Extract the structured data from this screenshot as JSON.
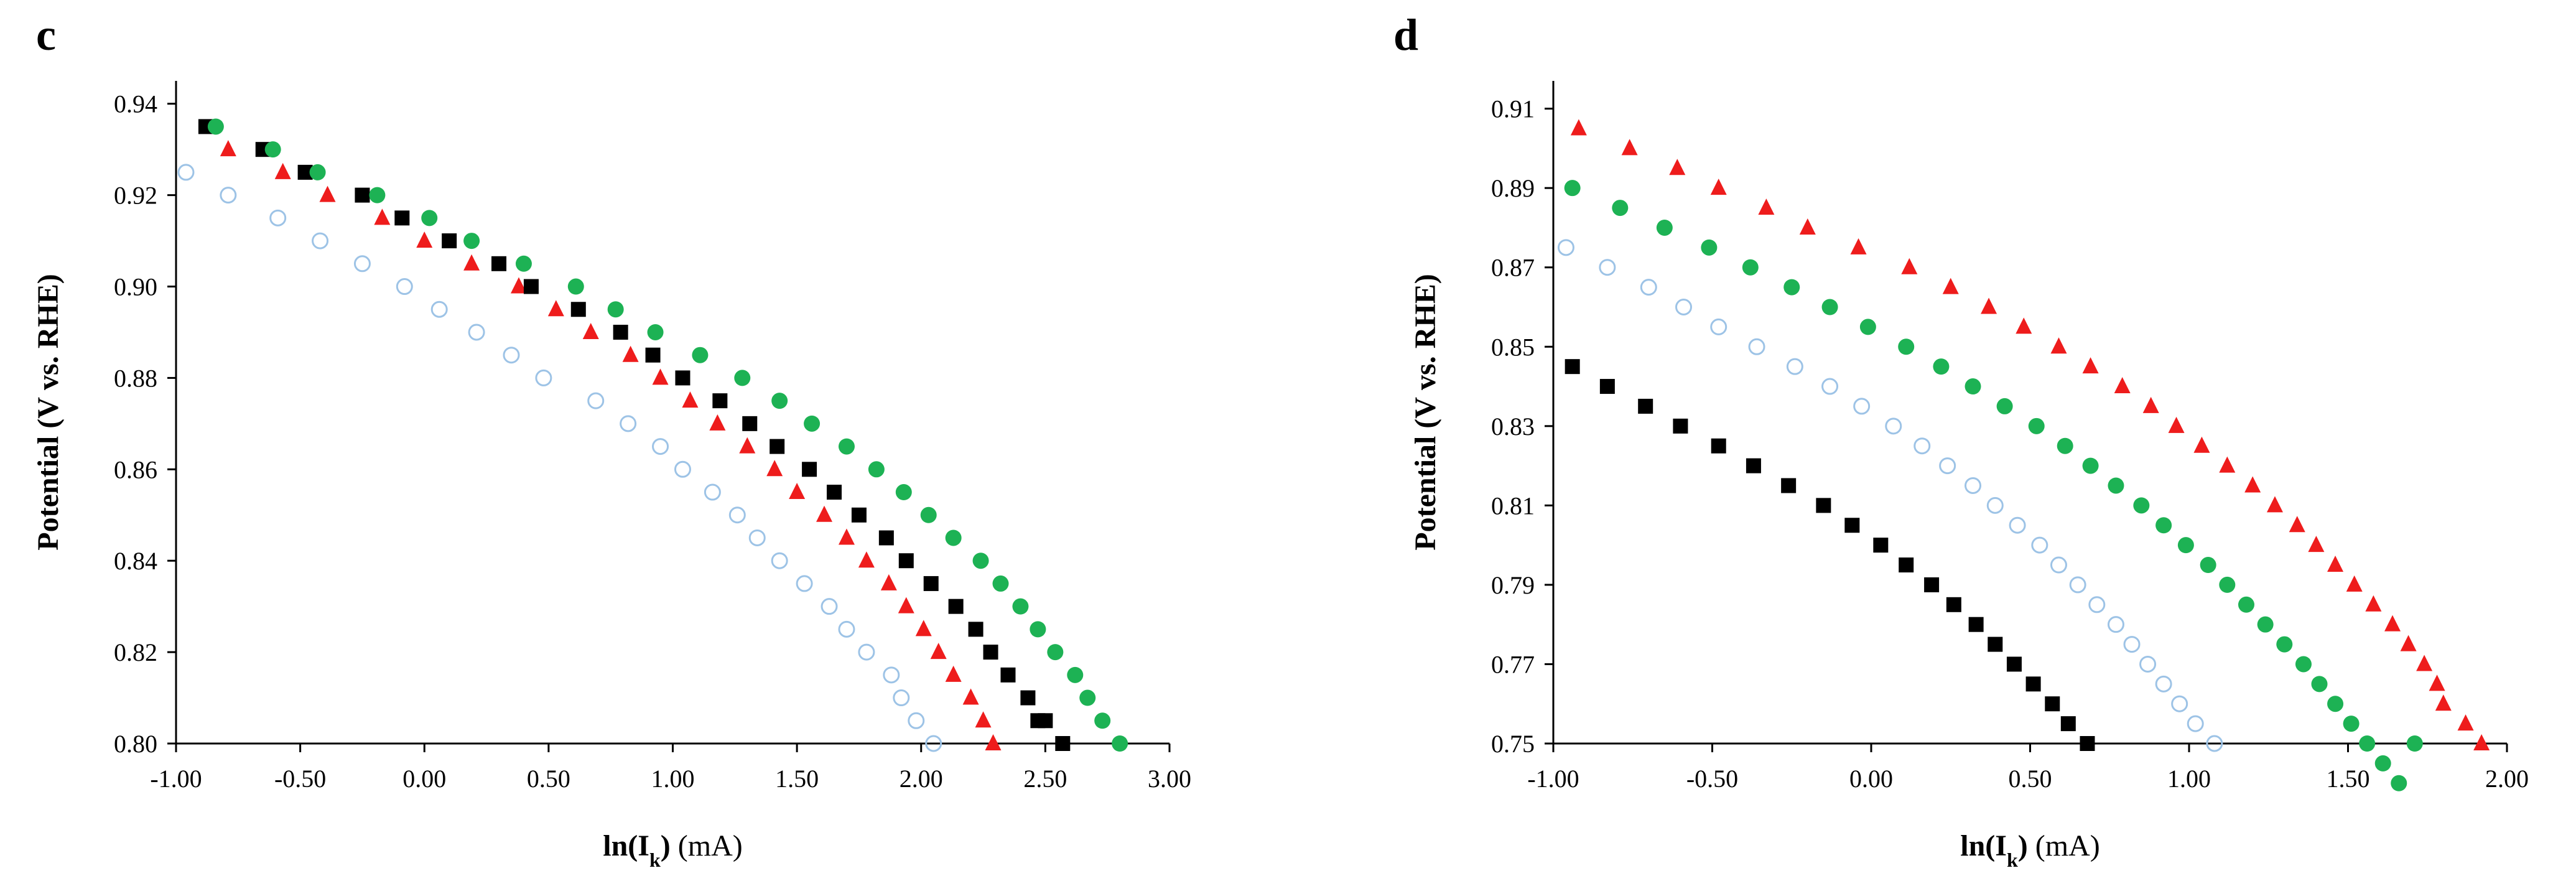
{
  "chart_data": [
    {
      "type": "scatter",
      "panel": "c",
      "title": "",
      "xlabel_main": "ln(I",
      "xlabel_sub": "k",
      "xlabel_close": ")",
      "xlabel_unit": " (mA)",
      "ylabel": "Potential (V vs. RHE)",
      "xlim": [
        -1.0,
        3.0
      ],
      "ylim": [
        0.8,
        0.945
      ],
      "xticks": [
        "-1.00",
        "-0.50",
        "0.00",
        "0.50",
        "1.00",
        "1.50",
        "2.00",
        "2.50",
        "3.00"
      ],
      "xtick_values": [
        -1.0,
        -0.5,
        0.0,
        0.5,
        1.0,
        1.5,
        2.0,
        2.5,
        3.0
      ],
      "yticks": [
        "0.80",
        "0.82",
        "0.84",
        "0.86",
        "0.88",
        "0.90",
        "0.92",
        "0.94"
      ],
      "ytick_values": [
        0.8,
        0.82,
        0.84,
        0.86,
        0.88,
        0.9,
        0.92,
        0.94
      ],
      "series": [
        {
          "name": "open-circle",
          "marker": "circle-open",
          "color": "#9dc3e6",
          "points": [
            [
              -0.96,
              0.925
            ],
            [
              -0.79,
              0.92
            ],
            [
              -0.59,
              0.915
            ],
            [
              -0.42,
              0.91
            ],
            [
              -0.25,
              0.905
            ],
            [
              -0.08,
              0.9
            ],
            [
              0.06,
              0.895
            ],
            [
              0.21,
              0.89
            ],
            [
              0.35,
              0.885
            ],
            [
              0.48,
              0.88
            ],
            [
              0.69,
              0.875
            ],
            [
              0.82,
              0.87
            ],
            [
              0.95,
              0.865
            ],
            [
              1.04,
              0.86
            ],
            [
              1.16,
              0.855
            ],
            [
              1.26,
              0.85
            ],
            [
              1.34,
              0.845
            ],
            [
              1.43,
              0.84
            ],
            [
              1.53,
              0.835
            ],
            [
              1.63,
              0.83
            ],
            [
              1.7,
              0.825
            ],
            [
              1.78,
              0.82
            ],
            [
              1.88,
              0.815
            ],
            [
              1.92,
              0.81
            ],
            [
              1.98,
              0.805
            ],
            [
              2.05,
              0.8
            ]
          ]
        },
        {
          "name": "red-triangle",
          "marker": "triangle",
          "color": "#ee1c1c",
          "points": [
            [
              -0.79,
              0.93
            ],
            [
              -0.57,
              0.925
            ],
            [
              -0.39,
              0.92
            ],
            [
              -0.17,
              0.915
            ],
            [
              0.0,
              0.91
            ],
            [
              0.19,
              0.905
            ],
            [
              0.38,
              0.9
            ],
            [
              0.53,
              0.895
            ],
            [
              0.67,
              0.89
            ],
            [
              0.83,
              0.885
            ],
            [
              0.95,
              0.88
            ],
            [
              1.07,
              0.875
            ],
            [
              1.18,
              0.87
            ],
            [
              1.3,
              0.865
            ],
            [
              1.41,
              0.86
            ],
            [
              1.5,
              0.855
            ],
            [
              1.61,
              0.85
            ],
            [
              1.7,
              0.845
            ],
            [
              1.78,
              0.84
            ],
            [
              1.87,
              0.835
            ],
            [
              1.94,
              0.83
            ],
            [
              2.01,
              0.825
            ],
            [
              2.07,
              0.82
            ],
            [
              2.13,
              0.815
            ],
            [
              2.2,
              0.81
            ],
            [
              2.25,
              0.805
            ],
            [
              2.29,
              0.8
            ]
          ]
        },
        {
          "name": "black-square",
          "marker": "square",
          "color": "#000000",
          "points": [
            [
              -0.88,
              0.935
            ],
            [
              -0.65,
              0.93
            ],
            [
              -0.48,
              0.925
            ],
            [
              -0.25,
              0.92
            ],
            [
              -0.09,
              0.915
            ],
            [
              0.1,
              0.91
            ],
            [
              0.3,
              0.905
            ],
            [
              0.43,
              0.9
            ],
            [
              0.62,
              0.895
            ],
            [
              0.79,
              0.89
            ],
            [
              0.92,
              0.885
            ],
            [
              1.04,
              0.88
            ],
            [
              1.19,
              0.875
            ],
            [
              1.31,
              0.87
            ],
            [
              1.42,
              0.865
            ],
            [
              1.55,
              0.86
            ],
            [
              1.65,
              0.855
            ],
            [
              1.75,
              0.85
            ],
            [
              1.86,
              0.845
            ],
            [
              1.94,
              0.84
            ],
            [
              2.04,
              0.835
            ],
            [
              2.14,
              0.83
            ],
            [
              2.22,
              0.825
            ],
            [
              2.28,
              0.82
            ],
            [
              2.35,
              0.815
            ],
            [
              2.43,
              0.81
            ],
            [
              2.47,
              0.805
            ],
            [
              2.5,
              0.805
            ],
            [
              2.57,
              0.8
            ]
          ]
        },
        {
          "name": "green-circle",
          "marker": "circle-filled",
          "color": "#1db254",
          "points": [
            [
              -0.84,
              0.935
            ],
            [
              -0.61,
              0.93
            ],
            [
              -0.43,
              0.925
            ],
            [
              -0.19,
              0.92
            ],
            [
              0.02,
              0.915
            ],
            [
              0.19,
              0.91
            ],
            [
              0.4,
              0.905
            ],
            [
              0.61,
              0.9
            ],
            [
              0.77,
              0.895
            ],
            [
              0.93,
              0.89
            ],
            [
              1.11,
              0.885
            ],
            [
              1.28,
              0.88
            ],
            [
              1.43,
              0.875
            ],
            [
              1.56,
              0.87
            ],
            [
              1.7,
              0.865
            ],
            [
              1.82,
              0.86
            ],
            [
              1.93,
              0.855
            ],
            [
              2.03,
              0.85
            ],
            [
              2.13,
              0.845
            ],
            [
              2.24,
              0.84
            ],
            [
              2.32,
              0.835
            ],
            [
              2.4,
              0.83
            ],
            [
              2.47,
              0.825
            ],
            [
              2.54,
              0.82
            ],
            [
              2.62,
              0.815
            ],
            [
              2.67,
              0.81
            ],
            [
              2.73,
              0.805
            ],
            [
              2.8,
              0.8
            ]
          ]
        }
      ]
    },
    {
      "type": "scatter",
      "panel": "d",
      "title": "",
      "xlabel_main": "ln(I",
      "xlabel_sub": "k",
      "xlabel_close": ")",
      "xlabel_unit": " (mA)",
      "ylabel": "Potential (V vs. RHE)",
      "xlim": [
        -1.0,
        2.0
      ],
      "ylim": [
        0.75,
        0.917
      ],
      "xticks": [
        "-1.00",
        "-0.50",
        "0.00",
        "0.50",
        "1.00",
        "1.50",
        "2.00"
      ],
      "xtick_values": [
        -1.0,
        -0.5,
        0.0,
        0.5,
        1.0,
        1.5,
        2.0
      ],
      "yticks": [
        "0.75",
        "0.77",
        "0.79",
        "0.81",
        "0.83",
        "0.85",
        "0.87",
        "0.89",
        "0.91"
      ],
      "ytick_values": [
        0.75,
        0.77,
        0.79,
        0.81,
        0.83,
        0.85,
        0.87,
        0.89,
        0.91
      ],
      "series": [
        {
          "name": "red-triangle",
          "marker": "triangle",
          "color": "#ee1c1c",
          "points": [
            [
              -0.92,
              0.905
            ],
            [
              -0.76,
              0.9
            ],
            [
              -0.61,
              0.895
            ],
            [
              -0.48,
              0.89
            ],
            [
              -0.33,
              0.885
            ],
            [
              -0.2,
              0.88
            ],
            [
              -0.04,
              0.875
            ],
            [
              0.12,
              0.87
            ],
            [
              0.25,
              0.865
            ],
            [
              0.37,
              0.86
            ],
            [
              0.48,
              0.855
            ],
            [
              0.59,
              0.85
            ],
            [
              0.69,
              0.845
            ],
            [
              0.79,
              0.84
            ],
            [
              0.88,
              0.835
            ],
            [
              0.96,
              0.83
            ],
            [
              1.04,
              0.825
            ],
            [
              1.12,
              0.82
            ],
            [
              1.2,
              0.815
            ],
            [
              1.27,
              0.81
            ],
            [
              1.34,
              0.805
            ],
            [
              1.4,
              0.8
            ],
            [
              1.46,
              0.795
            ],
            [
              1.52,
              0.79
            ],
            [
              1.58,
              0.785
            ],
            [
              1.64,
              0.78
            ],
            [
              1.69,
              0.775
            ],
            [
              1.74,
              0.77
            ],
            [
              1.78,
              0.765
            ],
            [
              1.8,
              0.76
            ],
            [
              1.87,
              0.755
            ],
            [
              1.92,
              0.75
            ]
          ]
        },
        {
          "name": "green-circle",
          "marker": "circle-filled",
          "color": "#1db254",
          "points": [
            [
              -0.94,
              0.89
            ],
            [
              -0.79,
              0.885
            ],
            [
              -0.65,
              0.88
            ],
            [
              -0.51,
              0.875
            ],
            [
              -0.38,
              0.87
            ],
            [
              -0.25,
              0.865
            ],
            [
              -0.13,
              0.86
            ],
            [
              -0.01,
              0.855
            ],
            [
              0.11,
              0.85
            ],
            [
              0.22,
              0.845
            ],
            [
              0.32,
              0.84
            ],
            [
              0.42,
              0.835
            ],
            [
              0.52,
              0.83
            ],
            [
              0.61,
              0.825
            ],
            [
              0.69,
              0.82
            ],
            [
              0.77,
              0.815
            ],
            [
              0.85,
              0.81
            ],
            [
              0.92,
              0.805
            ],
            [
              0.99,
              0.8
            ],
            [
              1.06,
              0.795
            ],
            [
              1.12,
              0.79
            ],
            [
              1.18,
              0.785
            ],
            [
              1.24,
              0.78
            ],
            [
              1.3,
              0.775
            ],
            [
              1.36,
              0.77
            ],
            [
              1.41,
              0.765
            ],
            [
              1.46,
              0.76
            ],
            [
              1.51,
              0.755
            ],
            [
              1.56,
              0.75
            ],
            [
              1.61,
              0.745
            ],
            [
              1.66,
              0.74
            ],
            [
              1.71,
              0.75
            ]
          ]
        },
        {
          "name": "open-circle",
          "marker": "circle-open",
          "color": "#9dc3e6",
          "points": [
            [
              -0.96,
              0.875
            ],
            [
              -0.83,
              0.87
            ],
            [
              -0.7,
              0.865
            ],
            [
              -0.59,
              0.86
            ],
            [
              -0.48,
              0.855
            ],
            [
              -0.36,
              0.85
            ],
            [
              -0.24,
              0.845
            ],
            [
              -0.13,
              0.84
            ],
            [
              -0.03,
              0.835
            ],
            [
              0.07,
              0.83
            ],
            [
              0.16,
              0.825
            ],
            [
              0.24,
              0.82
            ],
            [
              0.32,
              0.815
            ],
            [
              0.39,
              0.81
            ],
            [
              0.46,
              0.805
            ],
            [
              0.53,
              0.8
            ],
            [
              0.59,
              0.795
            ],
            [
              0.65,
              0.79
            ],
            [
              0.71,
              0.785
            ],
            [
              0.77,
              0.78
            ],
            [
              0.82,
              0.775
            ],
            [
              0.87,
              0.77
            ],
            [
              0.92,
              0.765
            ],
            [
              0.97,
              0.76
            ],
            [
              1.02,
              0.755
            ],
            [
              1.08,
              0.75
            ]
          ]
        },
        {
          "name": "black-square",
          "marker": "square",
          "color": "#000000",
          "points": [
            [
              -0.94,
              0.845
            ],
            [
              -0.83,
              0.84
            ],
            [
              -0.71,
              0.835
            ],
            [
              -0.6,
              0.83
            ],
            [
              -0.48,
              0.825
            ],
            [
              -0.37,
              0.82
            ],
            [
              -0.26,
              0.815
            ],
            [
              -0.15,
              0.81
            ],
            [
              -0.06,
              0.805
            ],
            [
              0.03,
              0.8
            ],
            [
              0.11,
              0.795
            ],
            [
              0.19,
              0.79
            ],
            [
              0.26,
              0.785
            ],
            [
              0.33,
              0.78
            ],
            [
              0.39,
              0.775
            ],
            [
              0.45,
              0.77
            ],
            [
              0.51,
              0.765
            ],
            [
              0.57,
              0.76
            ],
            [
              0.62,
              0.755
            ],
            [
              0.68,
              0.75
            ]
          ]
        }
      ]
    }
  ]
}
